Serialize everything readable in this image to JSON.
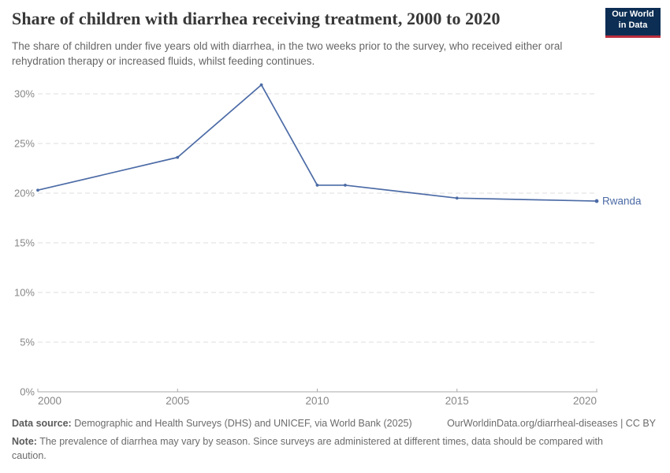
{
  "header": {
    "title": "Share of children with diarrhea receiving treatment, 2000 to 2020",
    "subtitle": "The share of children under five years old with diarrhea, in the two weeks prior to the survey, who received either oral rehydration therapy or increased fluids, whilst feeding continues.",
    "logo": {
      "line1": "Our World",
      "line2": "in Data",
      "bg_color": "#0d2e54",
      "stripe_color": "#bc2f3f"
    }
  },
  "chart_data": {
    "type": "line",
    "title": "Share of children with diarrhea receiving treatment, 2000 to 2020",
    "x": [
      2000,
      2005,
      2008,
      2010,
      2011,
      2015,
      2020
    ],
    "series": [
      {
        "name": "Rwanda",
        "color": "#4c6ba6",
        "values": [
          20.3,
          23.6,
          30.9,
          20.8,
          20.8,
          19.5,
          19.2
        ]
      }
    ],
    "x_ticks": [
      2000,
      2005,
      2010,
      2015,
      2020
    ],
    "y_ticks": [
      0,
      5,
      10,
      15,
      20,
      25,
      30
    ],
    "y_suffix": "%",
    "xlim": [
      2000,
      2020
    ],
    "ylim": [
      0,
      31
    ],
    "grid": "horizontal-dashed",
    "legend_position": "end-of-line",
    "axis_text_color": "#878787",
    "gridline_color": "#dedede",
    "axis_line_color": "#a8a8a8"
  },
  "footer": {
    "source_label": "Data source:",
    "source_text": "Demographic and Health Surveys (DHS) and UNICEF, via World Bank (2025)",
    "attribution": "OurWorldinData.org/diarrheal-diseases | CC BY",
    "note_label": "Note:",
    "note_text": "The prevalence of diarrhea may vary by season. Since surveys are administered at different times, data should be compared with caution."
  }
}
